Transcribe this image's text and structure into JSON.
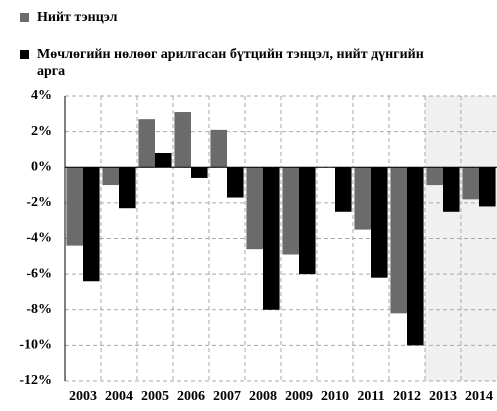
{
  "chart_data": {
    "type": "bar",
    "categories": [
      "2003",
      "2004",
      "2005",
      "2006",
      "2007",
      "2008",
      "2009",
      "2010",
      "2011",
      "2012",
      "2013",
      "2014"
    ],
    "series": [
      {
        "name": "Нийт тэнцэл",
        "color": "#6b6b6b",
        "values": [
          -4.4,
          -1.0,
          2.7,
          3.1,
          2.1,
          -4.6,
          -4.9,
          0,
          -3.5,
          -8.2,
          -1.0,
          -1.8
        ]
      },
      {
        "name": "Мөчлөгийн нөлөөг арилгасан бүтцийн тэнцэл, нийт дүнгийн арга",
        "color": "#000000",
        "values": [
          -6.4,
          -2.3,
          0.8,
          -0.6,
          -1.7,
          -8.0,
          -6.0,
          -2.5,
          -6.2,
          -10.0,
          -2.5,
          -2.2
        ]
      }
    ],
    "ylim": [
      -12,
      4
    ],
    "yticks": [
      {
        "value": -12,
        "label": "-12%"
      },
      {
        "value": -10,
        "label": "-10%"
      },
      {
        "value": -8,
        "label": "-8%"
      },
      {
        "value": -6,
        "label": "-6%"
      },
      {
        "value": -4,
        "label": "-4%"
      },
      {
        "value": -2,
        "label": "-2%"
      },
      {
        "value": 0,
        "label": "0%"
      },
      {
        "value": 2,
        "label": "2%"
      },
      {
        "value": 4,
        "label": "4%"
      }
    ],
    "grid": true
  }
}
